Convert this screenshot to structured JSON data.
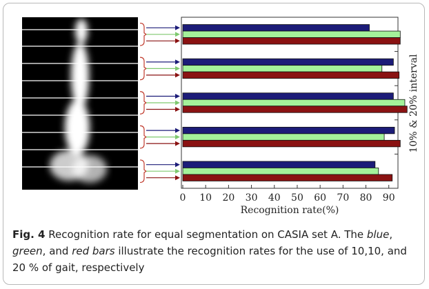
{
  "chart_data": {
    "type": "hbar",
    "y_axis_label": "10% & 20% interval",
    "x_axis_label": "Recognition rate(%)",
    "xlim": [
      0,
      94
    ],
    "xticks": [
      0,
      10,
      20,
      30,
      40,
      50,
      60,
      70,
      80,
      90
    ],
    "series": [
      {
        "color": "#1c1c78",
        "values": [
          81.5,
          92,
          92,
          92.5,
          84
        ]
      },
      {
        "color": "#a4f29a",
        "values": [
          95,
          87,
          97,
          88,
          85.5
        ]
      },
      {
        "color": "#8a1212",
        "values": [
          95,
          94.5,
          98,
          95,
          91.5
        ]
      }
    ]
  },
  "caption": {
    "label": "Fig. 4",
    "parts": [
      " Recognition rate for equal segmentation on CASIA set A. The ",
      "blue",
      ", ",
      "green",
      ", and ",
      "red bars",
      " illustrate the recognition rates for the use of 10,10, and 20 % of gait, respectively"
    ]
  }
}
